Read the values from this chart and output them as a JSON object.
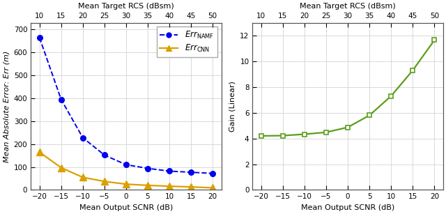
{
  "left": {
    "scnr_x": [
      -20,
      -15,
      -10,
      -5,
      0,
      5,
      10,
      15,
      20
    ],
    "rcs_x": [
      10,
      15,
      20,
      25,
      30,
      35,
      40,
      45,
      50
    ],
    "namf_y": [
      665,
      395,
      228,
      152,
      110,
      94,
      82,
      77,
      72
    ],
    "cnn_y": [
      165,
      97,
      55,
      37,
      25,
      20,
      16,
      13,
      9
    ],
    "xlabel_bottom": "Mean Output SCNR (dB)",
    "xlabel_top": "Mean Target RCS (dBsm)",
    "ylabel_prefix": "Mean Absolute Error: ",
    "ylabel_italic": "Err",
    "ylabel_suffix": " (m)",
    "namf_color": "#0000EE",
    "cnn_color": "#DAA000",
    "xlim": [
      -22,
      22
    ],
    "ylim": [
      0,
      730
    ],
    "yticks": [
      0,
      100,
      200,
      300,
      400,
      500,
      600,
      700
    ],
    "xticks_bottom": [
      -20,
      -15,
      -10,
      -5,
      0,
      5,
      10,
      15,
      20
    ],
    "xticks_top": [
      10,
      15,
      20,
      25,
      30,
      35,
      40,
      45,
      50
    ]
  },
  "right": {
    "scnr_x": [
      -20,
      -15,
      -10,
      -5,
      0,
      5,
      10,
      15,
      20
    ],
    "rcs_x": [
      10,
      15,
      20,
      25,
      30,
      35,
      40,
      45,
      50
    ],
    "gain_y": [
      4.2,
      4.22,
      4.33,
      4.48,
      4.87,
      5.8,
      7.3,
      9.3,
      11.65
    ],
    "xlabel_bottom": "Mean Output SCNR (dB)",
    "xlabel_top": "Mean Target RCS (dBsm)",
    "ylabel": "Gain (Linear)",
    "line_color": "#5A9E1A",
    "xlim": [
      -22,
      22
    ],
    "ylim": [
      0,
      13
    ],
    "yticks": [
      0,
      2,
      4,
      6,
      8,
      10,
      12
    ],
    "xticks_bottom": [
      -20,
      -15,
      -10,
      -5,
      0,
      5,
      10,
      15,
      20
    ],
    "xticks_top": [
      10,
      15,
      20,
      25,
      30,
      35,
      40,
      45,
      50
    ]
  },
  "fig_width": 6.4,
  "fig_height": 3.07,
  "dpi": 100,
  "bg_color": "#FFFFFF",
  "grid_color": "#D3D3D3",
  "font_size": 8.0,
  "tick_size": 7.5
}
